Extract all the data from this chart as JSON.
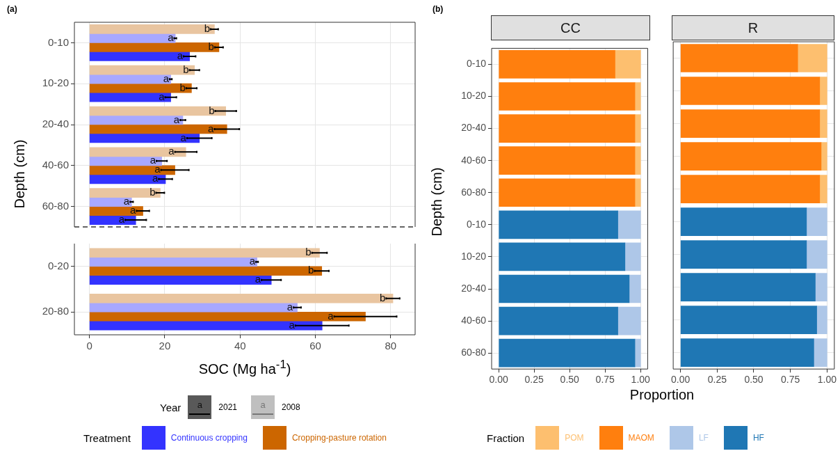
{
  "chart_data": [
    {
      "type": "bar",
      "orientation": "horizontal",
      "annotations": [
        "(a)"
      ],
      "ylabel": "Depth (cm)",
      "categories": [
        "0-10",
        "10-20",
        "20-40",
        "40-60",
        "60-80"
      ],
      "series": [
        {
          "color": "#e9c5a0",
          "values": [
            33.2,
            27.9,
            36.2,
            25.6,
            18.8
          ],
          "errors": [
            1.0,
            1.3,
            2.8,
            2.9,
            1.1
          ],
          "value_labels": [
            "b",
            "b",
            "b",
            "a",
            "b"
          ]
        },
        {
          "color": "#a8a8ff",
          "values": [
            22.8,
            21.6,
            24.8,
            19.2,
            11.2
          ],
          "errors": [
            0.3,
            0.3,
            0.7,
            1.4,
            0.4
          ],
          "value_labels": [
            "a",
            "a",
            "a",
            "a",
            "a"
          ]
        },
        {
          "color": "#cc6600",
          "values": [
            34.4,
            27.1,
            36.5,
            22.7,
            14.2
          ],
          "errors": [
            1.1,
            1.4,
            3.3,
            3.7,
            1.7
          ],
          "value_labels": [
            "b",
            "b",
            "a",
            "a",
            "a"
          ]
        },
        {
          "color": "#3333ff",
          "values": [
            26.6,
            21.6,
            29.2,
            20.2,
            12.3
          ],
          "errors": [
            1.6,
            1.5,
            3.3,
            1.8,
            2.8
          ],
          "value_labels": [
            "a",
            "a",
            "a",
            "a",
            "a"
          ]
        }
      ],
      "xlim": [
        -4,
        86.5
      ],
      "xticks": [
        0,
        20,
        40,
        60,
        80
      ],
      "grid": true,
      "tick_labels": "y"
    },
    {
      "type": "bar",
      "orientation": "horizontal",
      "xlabel": "SOC (Mg ha$^{-1}$)",
      "categories": [
        "0-20",
        "20-80"
      ],
      "series": [
        {
          "color": "#e9c5a0",
          "values": [
            61.1,
            80.6
          ],
          "errors": [
            2.0,
            1.8
          ],
          "value_labels": [
            "b",
            "b"
          ]
        },
        {
          "color": "#a8a8ff",
          "values": [
            44.5,
            55.2
          ],
          "errors": [
            0.3,
            1.0
          ],
          "value_labels": [
            "a",
            "a"
          ]
        },
        {
          "name": "Cropping-pasture rotation",
          "color": "#cc6600",
          "values": [
            61.7,
            73.3
          ],
          "errors": [
            1.9,
            8.3
          ],
          "value_labels": [
            "b",
            "a"
          ]
        },
        {
          "name": "Continuous cropping",
          "color": "#3333ff",
          "values": [
            48.3,
            61.8
          ],
          "errors": [
            2.6,
            7.1
          ],
          "value_labels": [
            "a",
            "a"
          ]
        }
      ],
      "xlim": [
        -4,
        86.5
      ],
      "xticks": [
        0,
        20,
        40,
        60,
        80
      ],
      "grid": true,
      "legend": "bottom",
      "legend_title": "Treatment",
      "annotations": [
        "Year",
        "a",
        "2021",
        "a",
        "2008"
      ]
    },
    {
      "type": "bar",
      "orientation": "horizontal",
      "stacked": true,
      "title": "CC",
      "annotations": [
        "(b)"
      ],
      "ylabel": "Depth (cm)",
      "xlabel": "Proportion",
      "categories": [
        "0-10",
        "10-20",
        "20-40",
        "40-60",
        "60-80",
        "0-10",
        "10-20",
        "20-40",
        "40-60",
        "60-80"
      ],
      "series": [
        {
          "name": "HF",
          "color": "#1f77b4",
          "values": [
            null,
            null,
            null,
            null,
            null,
            0.84,
            0.89,
            0.92,
            0.84,
            0.96
          ]
        },
        {
          "name": "LF",
          "color": "#aec7e8",
          "values": [
            null,
            null,
            null,
            null,
            null,
            0.16,
            0.11,
            0.08,
            0.16,
            0.04
          ]
        },
        {
          "name": "MAOM",
          "color": "#ff7f0e",
          "values": [
            0.82,
            0.96,
            0.96,
            0.96,
            0.96,
            null,
            null,
            null,
            null,
            null
          ]
        },
        {
          "name": "POM",
          "color": "#fdbf6f",
          "values": [
            0.18,
            0.04,
            0.04,
            0.04,
            0.04,
            null,
            null,
            null,
            null,
            null
          ]
        }
      ],
      "xlim": [
        -0.05,
        1.05
      ],
      "xticks": [
        {
          "value": 0,
          "label": "0.00"
        },
        {
          "value": 0.25,
          "label": "0.25"
        },
        {
          "value": 0.5,
          "label": "0.50"
        },
        {
          "value": 0.75,
          "label": "0.75"
        },
        {
          "value": 1,
          "label": "1.00"
        }
      ],
      "grid": true,
      "legend": "bottom",
      "legend_title": "Fraction"
    },
    {
      "type": "bar",
      "orientation": "horizontal",
      "stacked": true,
      "title": "R",
      "categories": [
        null,
        null,
        null,
        null,
        null,
        null,
        null,
        null,
        null,
        null
      ],
      "series": [
        {
          "color": "#1f77b4",
          "values": [
            null,
            null,
            null,
            null,
            null,
            0.86,
            0.86,
            0.92,
            0.93,
            0.91
          ]
        },
        {
          "color": "#aec7e8",
          "values": [
            null,
            null,
            null,
            null,
            null,
            0.14,
            0.14,
            0.08,
            0.07,
            0.09
          ]
        },
        {
          "color": "#ff7f0e",
          "values": [
            0.8,
            0.95,
            0.95,
            0.96,
            0.95,
            null,
            null,
            null,
            null,
            null
          ]
        },
        {
          "color": "#fdbf6f",
          "values": [
            0.2,
            0.05,
            0.05,
            0.04,
            0.05,
            null,
            null,
            null,
            null,
            null
          ]
        }
      ],
      "xlim": [
        -0.05,
        1.05
      ],
      "xticks": [
        {
          "value": 0,
          "label": "0.00"
        },
        {
          "value": 0.25,
          "label": "0.25"
        },
        {
          "value": 0.5,
          "label": "0.50"
        },
        {
          "value": 0.75,
          "label": "0.75"
        },
        {
          "value": 1,
          "label": "1.00"
        }
      ],
      "grid": true,
      "tick_labels": "x"
    }
  ]
}
